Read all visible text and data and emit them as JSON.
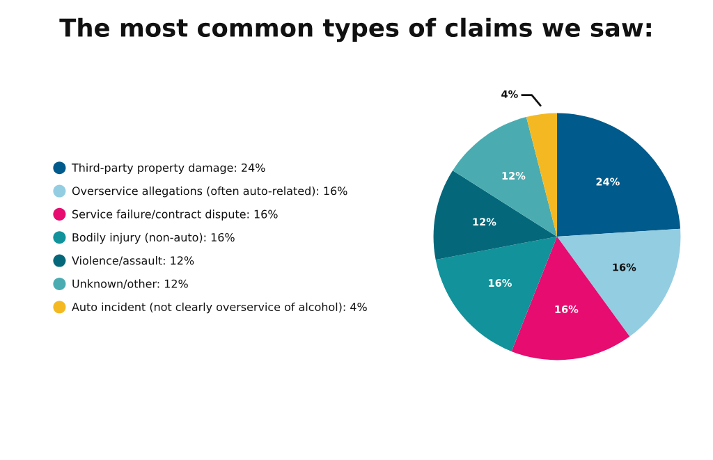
{
  "chart_data": {
    "type": "pie",
    "title": "The most common types of claims we saw:",
    "categories": [
      "Third-party property damage: 24%",
      "Overservice allegations (often auto-related): 16%",
      "Service failure/contract dispute: 16%",
      "Bodily injury (non-auto): 16%",
      "Violence/assault: 12%",
      "Unknown/other: 12%",
      "Auto incident (not clearly overservice of alcohol): 4%"
    ],
    "values": [
      24,
      16,
      16,
      16,
      12,
      12,
      4
    ],
    "colors": [
      "#005a8b",
      "#93cde2",
      "#e60c70",
      "#12929a",
      "#05687a",
      "#4aacb1",
      "#f4b922"
    ],
    "value_labels": [
      "24%",
      "16%",
      "16%",
      "16%",
      "12%",
      "12%",
      "4%"
    ],
    "legend": "left"
  }
}
